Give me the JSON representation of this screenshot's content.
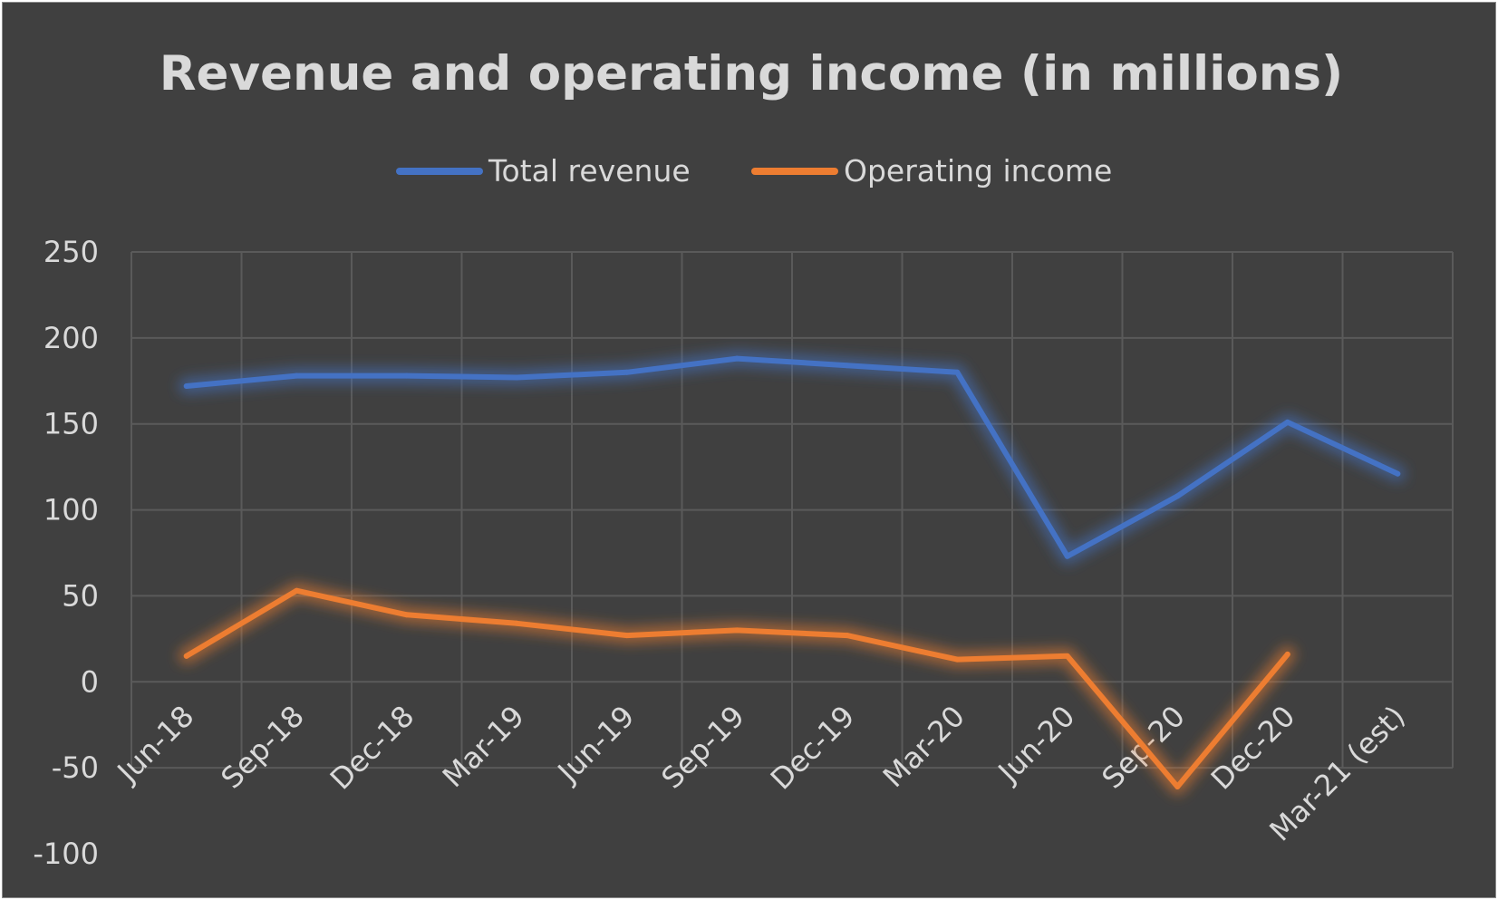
{
  "chart_data": {
    "type": "line",
    "title": "Revenue and operating income (in millions)",
    "xlabel": "",
    "ylabel": "",
    "categories": [
      "Jun-18",
      "Sep-18",
      "Dec-18",
      "Mar-19",
      "Jun-19",
      "Sep-19",
      "Dec-19",
      "Mar-20",
      "Jun-20",
      "Sep-20",
      "Dec-20",
      "Mar-21 (est)"
    ],
    "ylim": [
      -100,
      250
    ],
    "yticks": [
      "250",
      "200",
      "150",
      "100",
      "50",
      "0",
      "-50",
      "-100"
    ],
    "grid": true,
    "legend_position": "top",
    "series": [
      {
        "name": "Total revenue",
        "color": "#4472c4",
        "values": [
          172,
          178,
          178,
          177,
          180,
          188,
          184,
          180,
          73,
          108,
          151,
          121
        ]
      },
      {
        "name": "Operating income",
        "color": "#ed7d31",
        "values": [
          15,
          53,
          39,
          34,
          27,
          30,
          27,
          13,
          15,
          -61,
          16,
          null
        ]
      }
    ],
    "background": "#404040",
    "text_color": "#d9d9d9"
  }
}
